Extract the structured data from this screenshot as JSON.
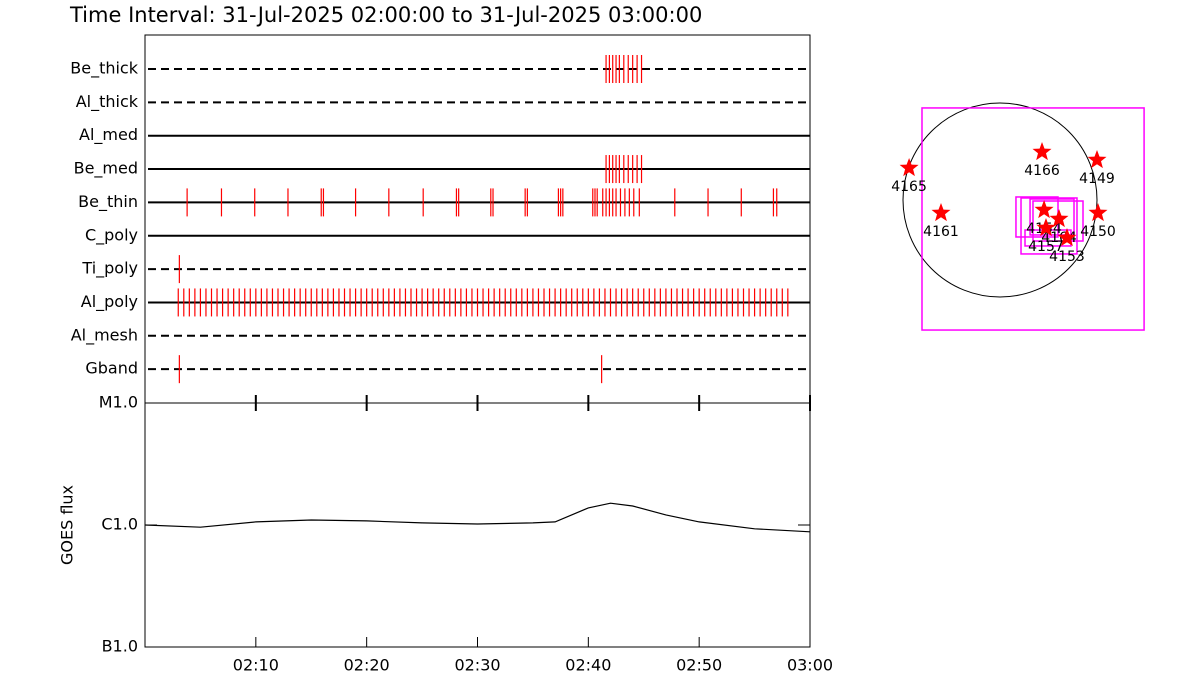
{
  "title": "Time Interval: 31-Jul-2025 02:00:00 to 31-Jul-2025 03:00:00",
  "chart_data": [
    {
      "type": "event",
      "color": "#ff0000",
      "categories": [
        "Be_thick",
        "Al_thick",
        "Al_med",
        "Be_med",
        "Be_thin",
        "C_poly",
        "Ti_poly",
        "Al_poly",
        "Al_mesh",
        "Gband"
      ],
      "line_styles": [
        "dashed",
        "dashed",
        "solid",
        "solid",
        "solid",
        "solid",
        "dashed",
        "solid",
        "dashed",
        "dashed"
      ],
      "xlim": [
        0,
        60
      ],
      "events": [
        [
          41.6,
          41.9,
          42.2,
          42.5,
          42.8,
          43.2,
          43.6,
          44.0,
          44.4,
          44.8
        ],
        [],
        [],
        [
          41.6,
          41.9,
          42.2,
          42.5,
          42.8,
          43.2,
          43.6,
          44.0,
          44.4,
          44.8
        ],
        [
          3.8,
          6.9,
          9.9,
          12.9,
          15.9,
          16.1,
          19.0,
          22.0,
          25.1,
          28.1,
          28.3,
          31.2,
          31.4,
          34.3,
          34.5,
          37.3,
          37.5,
          37.7,
          40.4,
          40.6,
          40.8,
          41.3,
          41.6,
          41.9,
          42.2,
          42.5,
          42.9,
          43.3,
          43.7,
          44.1,
          44.6,
          47.8,
          50.8,
          53.8,
          56.7,
          57.0
        ],
        [],
        [
          3.1
        ],
        [
          3.0,
          3.5,
          4.0,
          4.5,
          5.0,
          5.5,
          6.0,
          6.5,
          7.0,
          7.5,
          8.0,
          8.5,
          9.0,
          9.5,
          10.0,
          10.5,
          11.0,
          11.5,
          12.0,
          12.5,
          13.0,
          13.5,
          14.0,
          14.5,
          15.0,
          15.5,
          16.0,
          16.5,
          17.0,
          17.5,
          18.0,
          18.5,
          19.0,
          19.5,
          20.0,
          20.5,
          21.0,
          21.5,
          22.0,
          22.5,
          23.0,
          23.5,
          24.0,
          24.5,
          25.0,
          25.5,
          26.0,
          26.5,
          27.0,
          27.5,
          28.0,
          28.5,
          29.0,
          29.5,
          30.0,
          30.5,
          31.0,
          31.5,
          32.0,
          32.5,
          33.0,
          33.5,
          34.0,
          34.5,
          35.0,
          35.5,
          36.0,
          36.5,
          37.0,
          37.5,
          38.0,
          38.5,
          39.0,
          39.5,
          40.0,
          40.5,
          41.0,
          41.5,
          42.0,
          42.5,
          43.0,
          43.5,
          44.0,
          44.5,
          45.0,
          45.5,
          46.0,
          46.5,
          47.0,
          47.5,
          48.0,
          48.5,
          49.0,
          49.5,
          50.0,
          50.5,
          51.0,
          51.5,
          52.0,
          52.5,
          53.0,
          53.5,
          54.0,
          54.5,
          55.0,
          55.5,
          56.0,
          56.5,
          57.0,
          57.5,
          58.0
        ],
        [],
        [
          3.1,
          41.2
        ]
      ]
    },
    {
      "type": "line",
      "ylabel": "GOES flux",
      "color": "#000000",
      "log_scale": true,
      "x": [
        0,
        5,
        10,
        15,
        20,
        25,
        30,
        35,
        37,
        40,
        42,
        44,
        47,
        50,
        55,
        60
      ],
      "values": [
        1e-06,
        9.6e-07,
        1.06e-06,
        1.1e-06,
        1.08e-06,
        1.04e-06,
        1.02e-06,
        1.04e-06,
        1.06e-06,
        1.38e-06,
        1.51e-06,
        1.43e-06,
        1.21e-06,
        1.06e-06,
        9.3e-07,
        8.8e-07
      ],
      "ylim": [
        1e-07,
        1e-05
      ],
      "yticks": [
        {
          "value": 1e-07,
          "label": "B1.0"
        },
        {
          "value": 1e-06,
          "label": "C1.0"
        },
        {
          "value": 1e-05,
          "label": "M1.0"
        }
      ],
      "xlim": [
        0,
        60
      ],
      "xticks": [
        {
          "value": 10,
          "label": "02:10"
        },
        {
          "value": 20,
          "label": "02:20"
        },
        {
          "value": 30,
          "label": "02:30"
        },
        {
          "value": 40,
          "label": "02:40"
        },
        {
          "value": 50,
          "label": "02:50"
        },
        {
          "value": 60,
          "label": "03:00"
        }
      ]
    },
    {
      "type": "map",
      "solar_radius": 960,
      "fov_color": "#ff00ff",
      "marker_color": "#ff0000",
      "regions": [
        {
          "label": "4165",
          "x": -900,
          "y": 317
        },
        {
          "label": "4166",
          "x": 416,
          "y": 475
        },
        {
          "label": "4149",
          "x": 960,
          "y": 396
        },
        {
          "label": "4161",
          "x": -584,
          "y": -129
        },
        {
          "label": "4150",
          "x": 970,
          "y": -129
        },
        {
          "label": "4154",
          "x": 436,
          "y": -99
        },
        {
          "label": "4164",
          "x": 584,
          "y": -188
        },
        {
          "label": "4157",
          "x": 455,
          "y": -277
        },
        {
          "label": "4153",
          "x": 663,
          "y": -376
        }
      ],
      "fovs": [
        {
          "xcen": 327,
          "ycen": -188,
          "fovx": 2198,
          "fovy": 2198
        },
        {
          "xcen": 366,
          "ycen": -168,
          "fovx": 416,
          "fovy": 396
        },
        {
          "xcen": 515,
          "ycen": -168,
          "fovx": 435,
          "fovy": 356
        },
        {
          "xcen": 485,
          "ycen": -257,
          "fovx": 554,
          "fovy": 554
        },
        {
          "xcen": 574,
          "ycen": -208,
          "fovx": 495,
          "fovy": 396
        },
        {
          "xcen": 475,
          "ycen": -376,
          "fovx": 455,
          "fovy": 158
        }
      ]
    }
  ]
}
